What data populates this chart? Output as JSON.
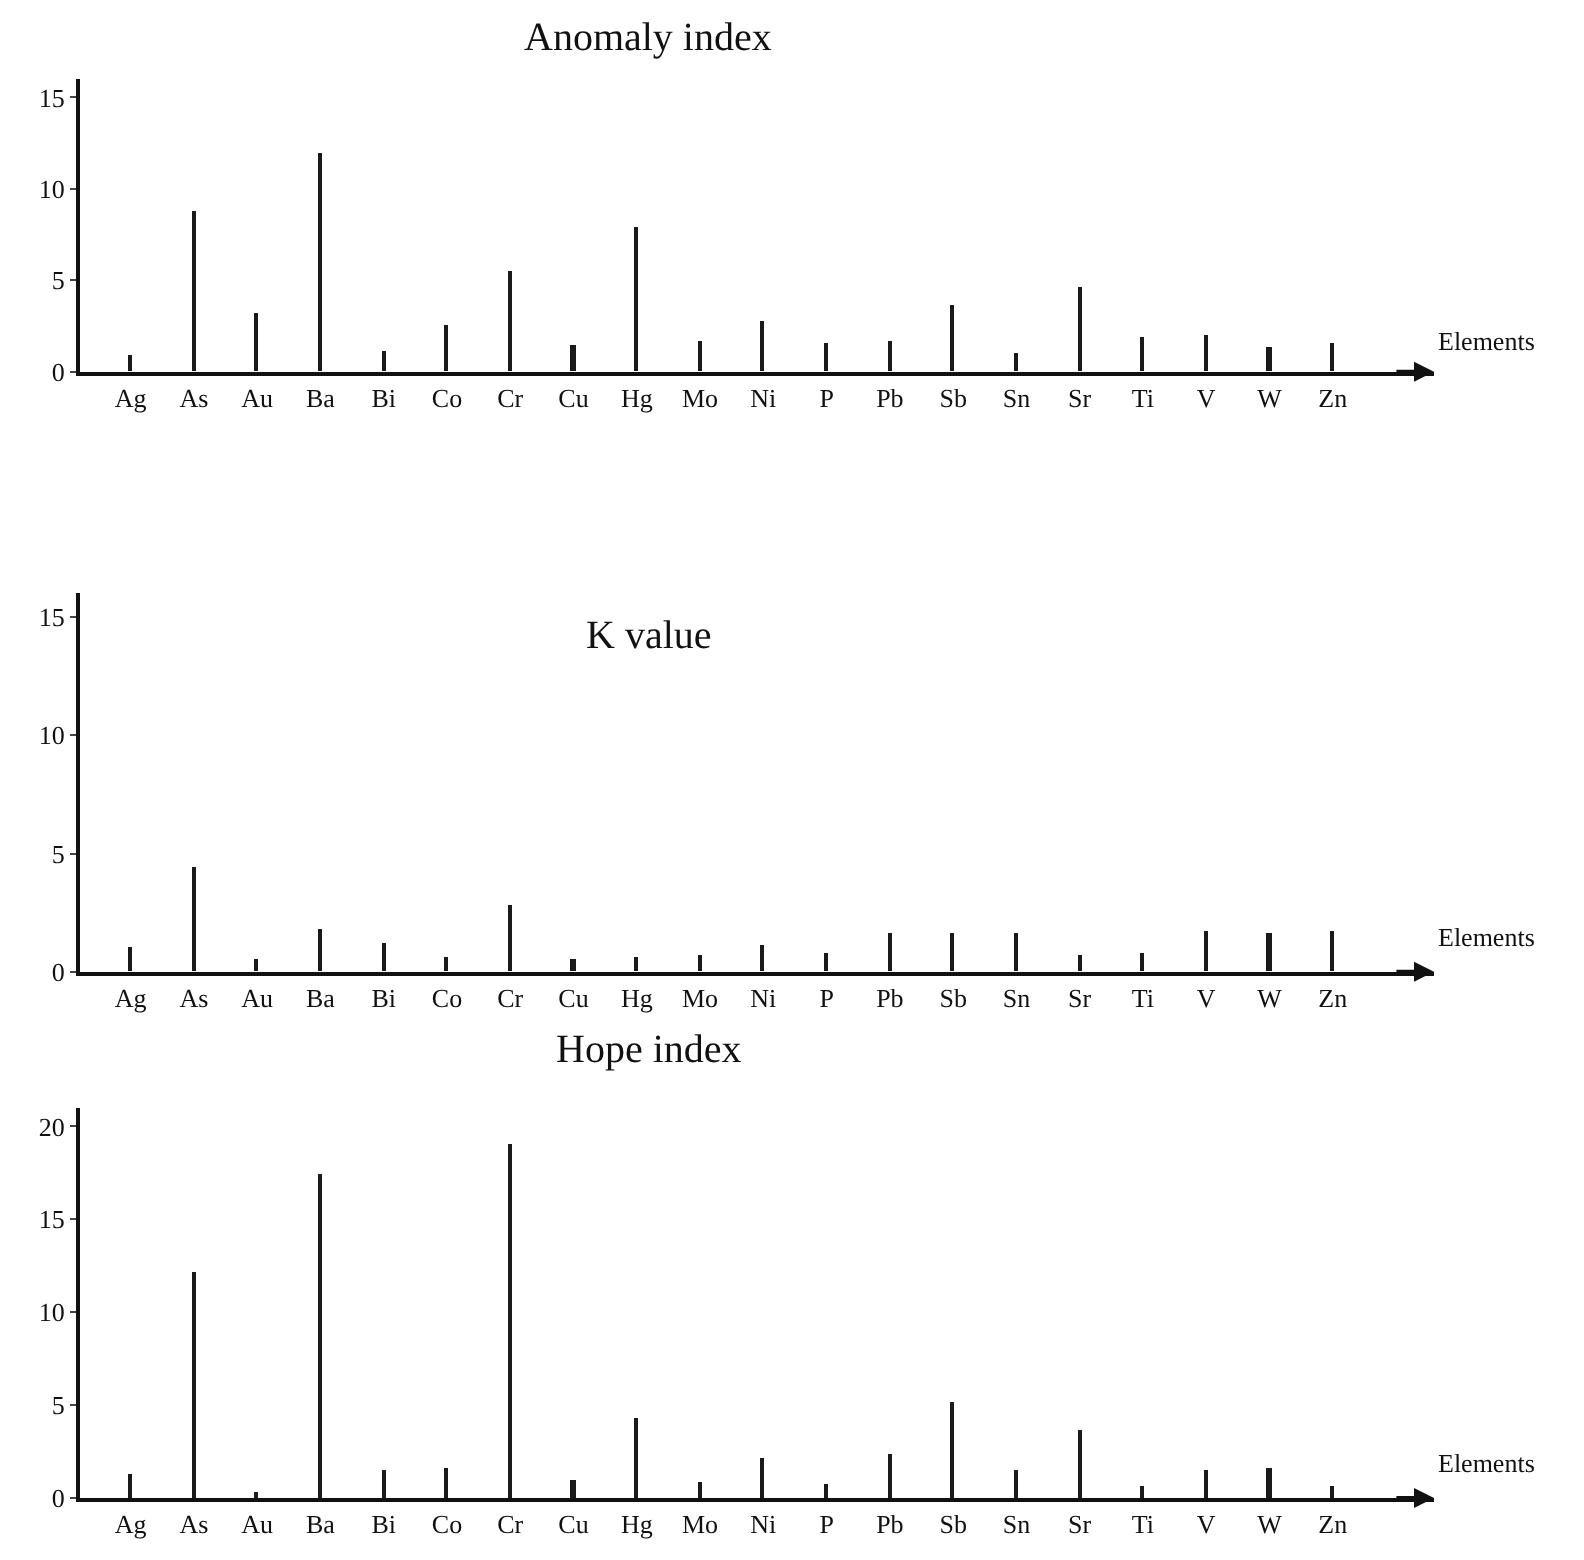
{
  "chart_data": [
    {
      "type": "bar",
      "title": "Anomaly index",
      "xlabel": "Elements",
      "categories": [
        "Ag",
        "As",
        "Au",
        "Ba",
        "Bi",
        "Co",
        "Cr",
        "Cu",
        "Hg",
        "Mo",
        "Ni",
        "P",
        "Pb",
        "Sb",
        "Sn",
        "Sr",
        "Ti",
        "V",
        "W",
        "Zn"
      ],
      "values": [
        0.9,
        8.8,
        3.2,
        12,
        1.1,
        2.5,
        5.5,
        1.5,
        7.9,
        1.7,
        2.8,
        1.6,
        1.7,
        3.6,
        1.0,
        4.6,
        1.9,
        2.0,
        1.3,
        1.6
      ],
      "color": "#1a1a1a",
      "ylim": [
        0,
        16
      ],
      "yticks": [
        0,
        5,
        10,
        15
      ]
    },
    {
      "type": "bar",
      "title": "K value",
      "xlabel": "Elements",
      "categories": [
        "Ag",
        "As",
        "Au",
        "Ba",
        "Bi",
        "Co",
        "Cr",
        "Cu",
        "Hg",
        "Mo",
        "Ni",
        "P",
        "Pb",
        "Sb",
        "Sn",
        "Sr",
        "Ti",
        "V",
        "W",
        "Zn"
      ],
      "values": [
        1.0,
        4.4,
        0.5,
        1.8,
        1.2,
        0.6,
        2.8,
        0.5,
        0.6,
        0.7,
        1.1,
        0.8,
        1.6,
        1.6,
        1.6,
        0.7,
        0.8,
        1.7,
        1.6,
        1.7
      ],
      "color": "#1a1a1a",
      "ylim": [
        0,
        16
      ],
      "yticks": [
        0,
        5,
        10,
        15
      ]
    },
    {
      "type": "bar",
      "title": "Hope index",
      "xlabel": "Elements",
      "categories": [
        "Ag",
        "As",
        "Au",
        "Ba",
        "Bi",
        "Co",
        "Cr",
        "Cu",
        "Hg",
        "Mo",
        "Ni",
        "P",
        "Pb",
        "Sb",
        "Sn",
        "Sr",
        "Ti",
        "V",
        "W",
        "Zn"
      ],
      "values": [
        1.3,
        12.2,
        0.3,
        17.5,
        1.5,
        1.6,
        19.1,
        1.0,
        4.3,
        0.9,
        2.2,
        0.8,
        2.4,
        5.2,
        1.5,
        3.7,
        0.7,
        1.5,
        1.6,
        0.7
      ],
      "color": "#1a1a1a",
      "ylim": [
        0,
        21
      ],
      "yticks": [
        0,
        5,
        10,
        15,
        20
      ]
    }
  ]
}
